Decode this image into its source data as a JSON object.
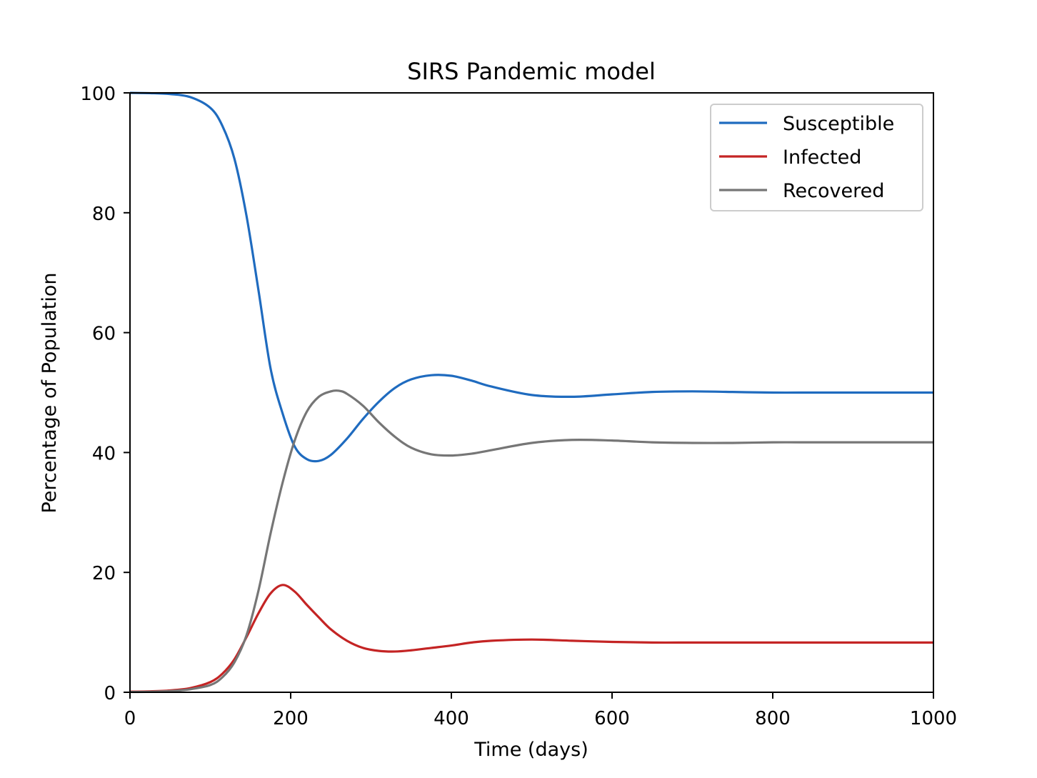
{
  "chart_data": {
    "type": "line",
    "title": "SIRS Pandemic model",
    "xlabel": "Time (days)",
    "ylabel": "Percentage of Population",
    "xlim": [
      0,
      1000
    ],
    "ylim": [
      0,
      100
    ],
    "xticks": [
      0,
      200,
      400,
      600,
      800,
      1000
    ],
    "yticks": [
      0,
      20,
      40,
      60,
      80,
      100
    ],
    "xtick_labels": [
      "0",
      "200",
      "400",
      "600",
      "800",
      "1000"
    ],
    "ytick_labels": [
      "0",
      "20",
      "40",
      "60",
      "80",
      "100"
    ],
    "grid": false,
    "legend_position": "top-right",
    "series": [
      {
        "name": "Susceptible",
        "color": "#1f6bbf",
        "x": [
          0,
          25,
          50,
          75,
          100,
          115,
          130,
          145,
          160,
          175,
          190,
          205,
          220,
          235,
          250,
          270,
          290,
          310,
          330,
          350,
          375,
          400,
          425,
          450,
          500,
          550,
          600,
          650,
          700,
          750,
          800,
          850,
          900,
          950,
          1000
        ],
        "y": [
          100,
          99.95,
          99.8,
          99.3,
          97.5,
          94.5,
          89,
          79.5,
          67,
          54,
          46.5,
          41,
          38.9,
          38.6,
          39.6,
          42.3,
          45.6,
          48.5,
          50.8,
          52.2,
          52.9,
          52.8,
          52.0,
          51.0,
          49.6,
          49.3,
          49.7,
          50.1,
          50.2,
          50.1,
          50.0,
          50.0,
          50.0,
          50.0,
          50.0
        ]
      },
      {
        "name": "Infected",
        "color": "#c42424",
        "x": [
          0,
          25,
          50,
          75,
          100,
          115,
          130,
          145,
          160,
          175,
          190,
          205,
          220,
          235,
          250,
          270,
          290,
          310,
          330,
          350,
          375,
          400,
          425,
          450,
          500,
          550,
          600,
          650,
          700,
          750,
          800,
          850,
          900,
          950,
          1000
        ],
        "y": [
          0.1,
          0.15,
          0.3,
          0.7,
          1.7,
          3.1,
          5.5,
          9.2,
          13.2,
          16.5,
          17.9,
          16.8,
          14.6,
          12.5,
          10.5,
          8.6,
          7.4,
          6.9,
          6.8,
          7.0,
          7.4,
          7.8,
          8.3,
          8.6,
          8.8,
          8.6,
          8.4,
          8.3,
          8.3,
          8.3,
          8.3,
          8.3,
          8.3,
          8.3,
          8.3
        ]
      },
      {
        "name": "Recovered",
        "color": "#767676",
        "x": [
          0,
          25,
          50,
          75,
          100,
          115,
          130,
          145,
          160,
          175,
          190,
          205,
          220,
          235,
          250,
          260,
          270,
          290,
          310,
          330,
          350,
          375,
          400,
          425,
          450,
          500,
          550,
          600,
          650,
          700,
          750,
          800,
          850,
          900,
          950,
          1000
        ],
        "y": [
          0.05,
          0.08,
          0.2,
          0.5,
          1.2,
          2.5,
          5,
          9.5,
          17,
          26.5,
          35,
          42,
          46.8,
          49.3,
          50.2,
          50.3,
          49.8,
          47.8,
          45.0,
          42.6,
          40.8,
          39.7,
          39.5,
          39.8,
          40.4,
          41.6,
          42.1,
          42.0,
          41.7,
          41.6,
          41.6,
          41.7,
          41.7,
          41.7,
          41.7,
          41.7
        ]
      }
    ]
  }
}
